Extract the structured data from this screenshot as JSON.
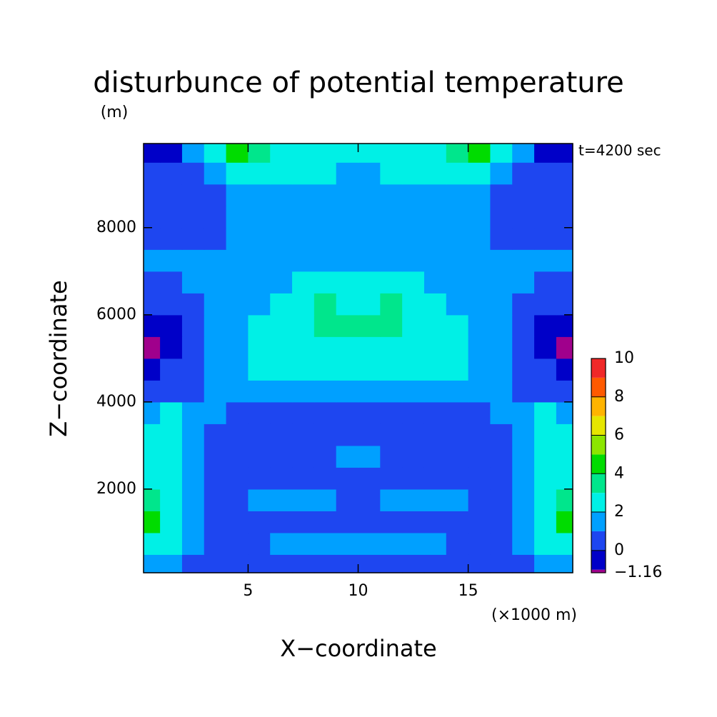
{
  "chart_data": {
    "type": "contour",
    "title": "disturbunce of potential temperature",
    "y_unit": "(m)",
    "x_unit": "(×1000 m)",
    "x_label": "X−coordinate",
    "y_label": "Z−coordinate",
    "annotation": "t=4200 sec",
    "xlim": [
      0.25,
      19.75
    ],
    "ylim": [
      80,
      9930
    ],
    "xticks": [
      5,
      10,
      15
    ],
    "yticks": [
      2000,
      4000,
      6000,
      8000
    ],
    "x": [
      0.5,
      1.5,
      2.5,
      3.5,
      4.5,
      5.5,
      6.5,
      7.5,
      8.5,
      9.5,
      10.5,
      11.5,
      12.5,
      13.5,
      14.5,
      15.5,
      16.5,
      17.5,
      18.5,
      19.5
    ],
    "y": [
      250,
      750,
      1250,
      1750,
      2250,
      2750,
      3250,
      3750,
      4250,
      4750,
      5250,
      5750,
      6250,
      6750,
      7250,
      7750,
      8250,
      8750,
      9250,
      9750
    ],
    "z": [
      [
        1.5,
        1.5,
        0.5,
        0.5,
        0.5,
        0.5,
        0.5,
        0.5,
        0.5,
        0.5,
        0.5,
        0.5,
        0.5,
        0.5,
        0.5,
        0.5,
        0.5,
        0.5,
        1.5,
        1.5
      ],
      [
        2.5,
        2.5,
        1.5,
        0.5,
        0.5,
        0.5,
        1.5,
        1.5,
        1.5,
        1.5,
        1.5,
        1.5,
        1.5,
        1.5,
        0.5,
        0.5,
        0.5,
        1.5,
        2.5,
        2.5
      ],
      [
        4.5,
        2.5,
        1.5,
        0.5,
        0.5,
        0.5,
        0.5,
        0.5,
        0.5,
        0.5,
        0.5,
        0.5,
        0.5,
        0.5,
        0.5,
        0.5,
        0.5,
        1.5,
        2.5,
        4.5
      ],
      [
        3.5,
        2.5,
        1.5,
        0.5,
        0.5,
        1.5,
        1.5,
        1.5,
        1.5,
        0.5,
        0.5,
        1.5,
        1.5,
        1.5,
        1.5,
        0.5,
        0.5,
        1.5,
        2.5,
        3.5
      ],
      [
        2.5,
        2.5,
        1.5,
        0.5,
        0.5,
        0.5,
        0.5,
        0.5,
        0.5,
        0.5,
        0.5,
        0.5,
        0.5,
        0.5,
        0.5,
        0.5,
        0.5,
        1.5,
        2.5,
        2.5
      ],
      [
        2.5,
        2.5,
        1.5,
        0.5,
        0.5,
        0.5,
        0.5,
        0.5,
        0.5,
        1.5,
        1.5,
        0.5,
        0.5,
        0.5,
        0.5,
        0.5,
        0.5,
        1.5,
        2.5,
        2.5
      ],
      [
        2.5,
        2.5,
        1.5,
        0.5,
        0.5,
        0.5,
        0.5,
        0.5,
        0.5,
        0.5,
        0.5,
        0.5,
        0.5,
        0.5,
        0.5,
        0.5,
        0.5,
        1.5,
        2.5,
        2.5
      ],
      [
        1.5,
        2.5,
        1.5,
        1.5,
        0.5,
        0.5,
        0.5,
        0.5,
        0.5,
        0.5,
        0.5,
        0.5,
        0.5,
        0.5,
        0.5,
        0.5,
        1.5,
        1.5,
        2.5,
        1.5
      ],
      [
        0.5,
        0.5,
        0.5,
        1.5,
        1.5,
        1.5,
        1.5,
        1.5,
        1.5,
        1.5,
        1.5,
        1.5,
        1.5,
        1.5,
        1.5,
        1.5,
        1.5,
        0.5,
        0.5,
        0.5
      ],
      [
        -0.5,
        0.5,
        0.5,
        1.5,
        1.5,
        2.5,
        2.5,
        2.5,
        2.5,
        2.5,
        2.5,
        2.5,
        2.5,
        2.5,
        2.5,
        1.5,
        1.5,
        0.5,
        0.5,
        -0.5
      ],
      [
        -1.08,
        -0.5,
        0.5,
        1.5,
        1.5,
        2.5,
        2.5,
        2.5,
        2.5,
        2.5,
        2.5,
        2.5,
        2.5,
        2.5,
        2.5,
        1.5,
        1.5,
        0.5,
        -0.5,
        -1.08
      ],
      [
        -0.5,
        -0.5,
        0.5,
        1.5,
        1.5,
        2.5,
        2.5,
        2.5,
        3.5,
        3.5,
        3.5,
        3.5,
        2.5,
        2.5,
        2.5,
        1.5,
        1.5,
        0.5,
        -0.5,
        -0.5
      ],
      [
        0.5,
        0.5,
        0.5,
        1.5,
        1.5,
        1.5,
        2.5,
        2.5,
        3.5,
        2.5,
        2.5,
        3.5,
        2.5,
        2.5,
        1.5,
        1.5,
        1.5,
        0.5,
        0.5,
        0.5
      ],
      [
        0.5,
        0.5,
        1.5,
        1.5,
        1.5,
        1.5,
        1.5,
        2.5,
        2.5,
        2.5,
        2.5,
        2.5,
        2.5,
        1.5,
        1.5,
        1.5,
        1.5,
        1.5,
        0.5,
        0.5
      ],
      [
        1.5,
        1.5,
        1.5,
        1.5,
        1.5,
        1.5,
        1.5,
        1.5,
        1.5,
        1.5,
        1.5,
        1.5,
        1.5,
        1.5,
        1.5,
        1.5,
        1.5,
        1.5,
        1.5,
        1.5
      ],
      [
        0.5,
        0.5,
        0.5,
        0.5,
        1.5,
        1.5,
        1.5,
        1.5,
        1.5,
        1.5,
        1.5,
        1.5,
        1.5,
        1.5,
        1.5,
        1.5,
        0.5,
        0.5,
        0.5,
        0.5
      ],
      [
        0.5,
        0.5,
        0.5,
        0.5,
        1.5,
        1.5,
        1.5,
        1.5,
        1.5,
        1.5,
        1.5,
        1.5,
        1.5,
        1.5,
        1.5,
        1.5,
        0.5,
        0.5,
        0.5,
        0.5
      ],
      [
        0.5,
        0.5,
        0.5,
        0.5,
        1.5,
        1.5,
        1.5,
        1.5,
        1.5,
        1.5,
        1.5,
        1.5,
        1.5,
        1.5,
        1.5,
        1.5,
        0.5,
        0.5,
        0.5,
        0.5
      ],
      [
        0.5,
        0.5,
        0.5,
        1.5,
        2.5,
        2.5,
        2.5,
        2.5,
        2.5,
        1.5,
        1.5,
        2.5,
        2.5,
        2.5,
        2.5,
        2.5,
        1.5,
        0.5,
        0.5,
        0.5
      ],
      [
        -0.5,
        -0.5,
        1.5,
        2.5,
        4.5,
        3.5,
        2.5,
        2.5,
        2.5,
        2.5,
        2.5,
        2.5,
        2.5,
        2.5,
        3.5,
        4.5,
        2.5,
        1.5,
        -0.5,
        -0.5
      ]
    ],
    "levels": [
      -1.16,
      -1,
      0,
      1,
      2,
      3,
      4,
      5,
      6,
      7,
      8,
      9,
      10
    ],
    "colors": [
      "#a0008c",
      "#0000c8",
      "#1e46f0",
      "#00a0ff",
      "#00f0e6",
      "#00e68c",
      "#00dc00",
      "#8ce600",
      "#e6e600",
      "#ffb400",
      "#ff5a00",
      "#f02828"
    ],
    "cticks": [
      {
        "value": -1.16,
        "label": "−1.16"
      },
      0,
      2,
      4,
      6,
      8,
      10
    ]
  }
}
